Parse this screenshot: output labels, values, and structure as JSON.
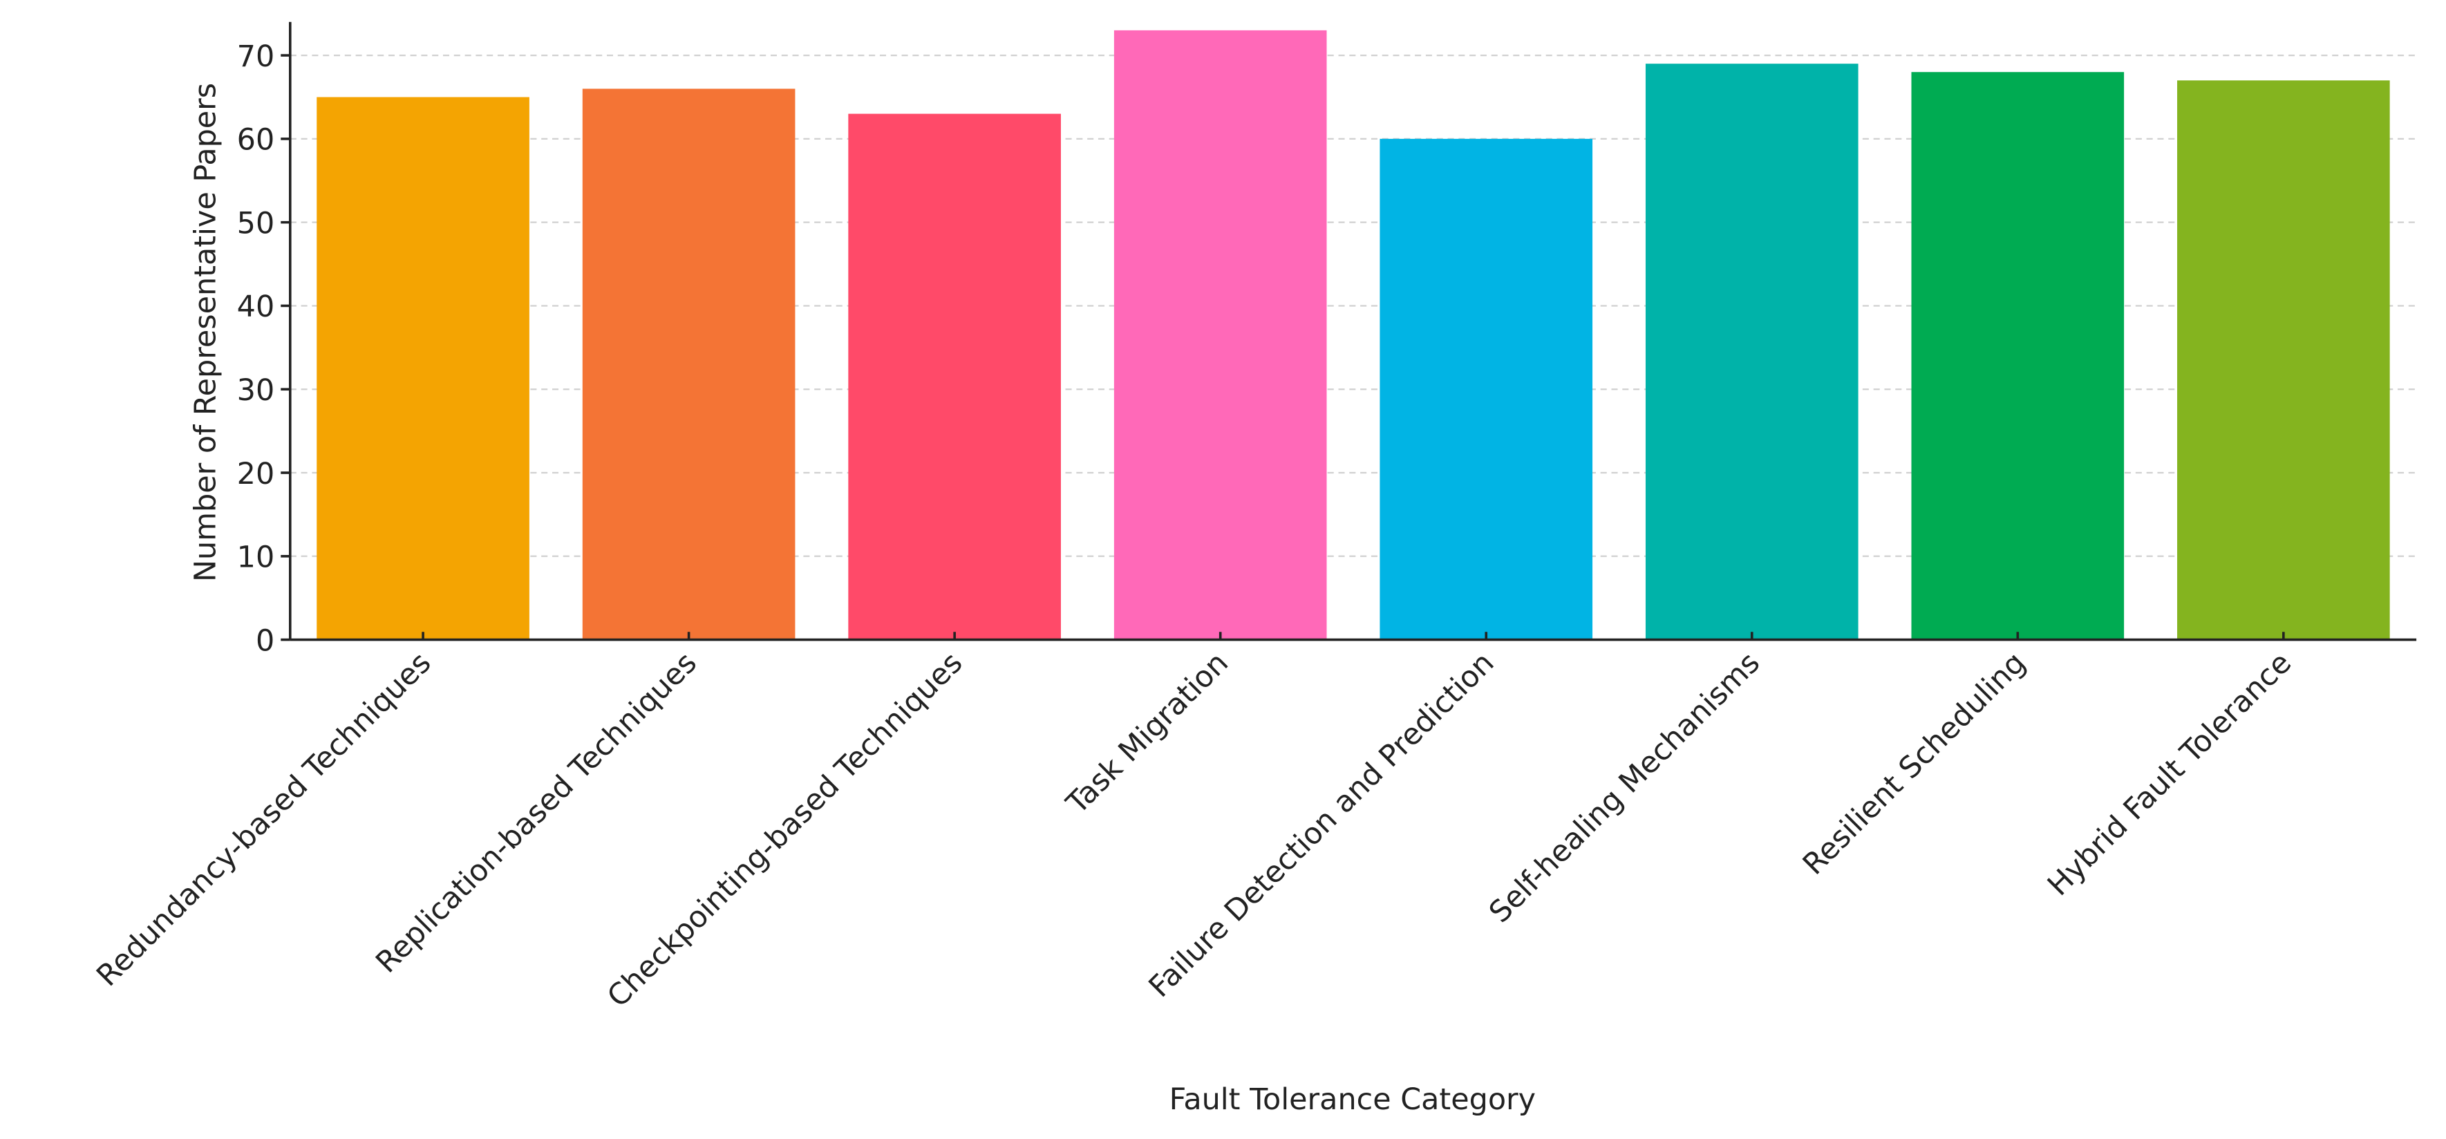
{
  "chart_data": {
    "type": "bar",
    "x_label": "Fault Tolerance Category",
    "y_label": "Number of Representative Papers",
    "categories": [
      "Redundancy-based Techniques",
      "Replication-based Techniques",
      "Checkpointing-based Techniques",
      "Task Migration",
      "Failure Detection and Prediction",
      "Self-healing Mechanisms",
      "Resilient Scheduling",
      "Hybrid Fault Tolerance"
    ],
    "values": [
      65,
      66,
      63,
      73,
      60,
      69,
      68,
      67
    ],
    "colors": [
      "#f4a402",
      "#f47435",
      "#ff4a69",
      "#ff69b8",
      "#01b4e4",
      "#00b3a9",
      "#00ab52",
      "#84b41f"
    ],
    "ylim": [
      0,
      74
    ],
    "yticks": [
      0,
      10,
      20,
      30,
      40,
      50,
      60,
      70
    ],
    "grid": true
  }
}
